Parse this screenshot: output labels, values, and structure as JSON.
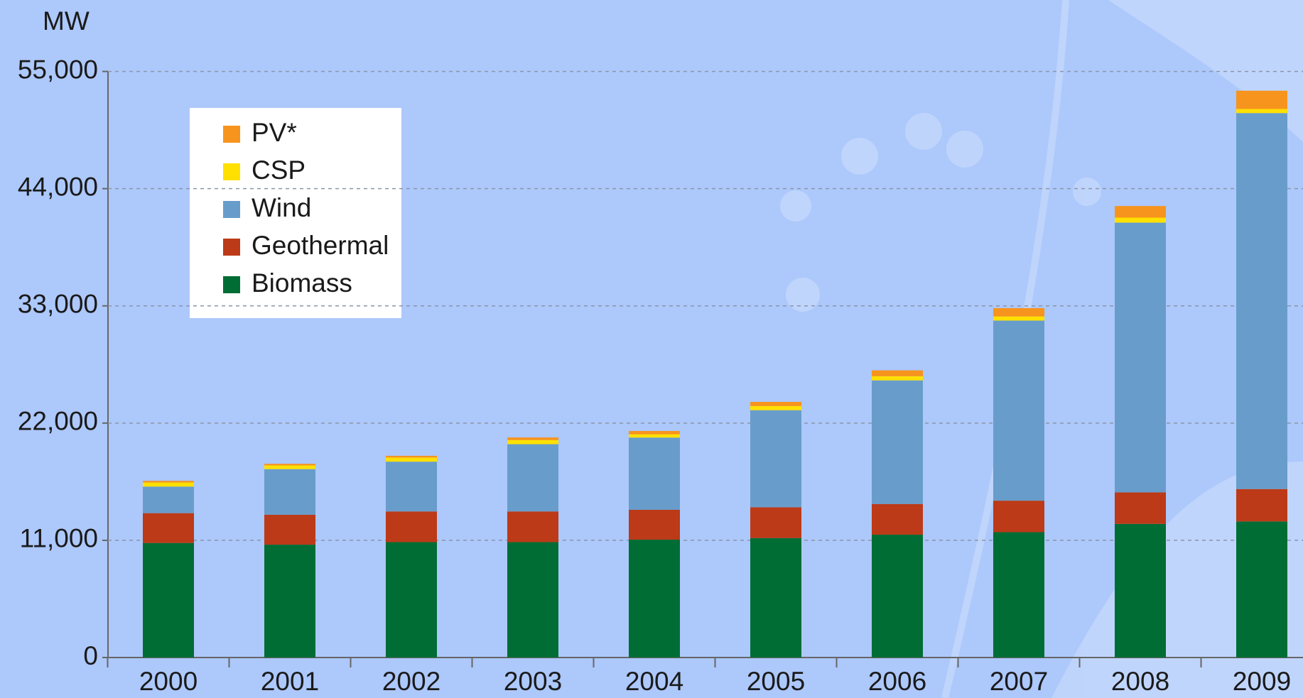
{
  "chart_data": {
    "type": "stacked_bar",
    "y_label": "MW",
    "categories": [
      "2000",
      "2001",
      "2002",
      "2003",
      "2004",
      "2005",
      "2006",
      "2007",
      "2008",
      "2009"
    ],
    "series": [
      {
        "name": "Biomass",
        "color": "#006d35",
        "values": [
          10750,
          10590,
          10830,
          10830,
          11060,
          11210,
          11530,
          11760,
          12540,
          12770
        ]
      },
      {
        "name": "Geothermal",
        "color": "#bc3a17",
        "values": [
          2800,
          2810,
          2880,
          2880,
          2800,
          2890,
          2880,
          2960,
          2960,
          3040
        ]
      },
      {
        "name": "Wind",
        "color": "#689dcb",
        "values": [
          2490,
          4280,
          4670,
          6310,
          6780,
          9110,
          11600,
          16900,
          25310,
          35280
        ]
      },
      {
        "name": "CSP",
        "color": "#ffe000",
        "values": [
          390,
          350,
          390,
          390,
          310,
          390,
          390,
          390,
          470,
          390
        ]
      },
      {
        "name": "PV*",
        "color": "#f7941d",
        "values": [
          150,
          150,
          160,
          240,
          310,
          390,
          550,
          780,
          1090,
          1710
        ]
      }
    ],
    "ylim": [
      0,
      55000
    ],
    "yticks": [
      0,
      {
        "value": 11000,
        "label": "11,000"
      },
      {
        "value": 22000,
        "label": "22,000"
      },
      {
        "value": 33000,
        "label": "33,000"
      },
      {
        "value": 44000,
        "label": "44,000"
      },
      {
        "value": 55000,
        "label": "55,000"
      }
    ],
    "grid": true
  }
}
